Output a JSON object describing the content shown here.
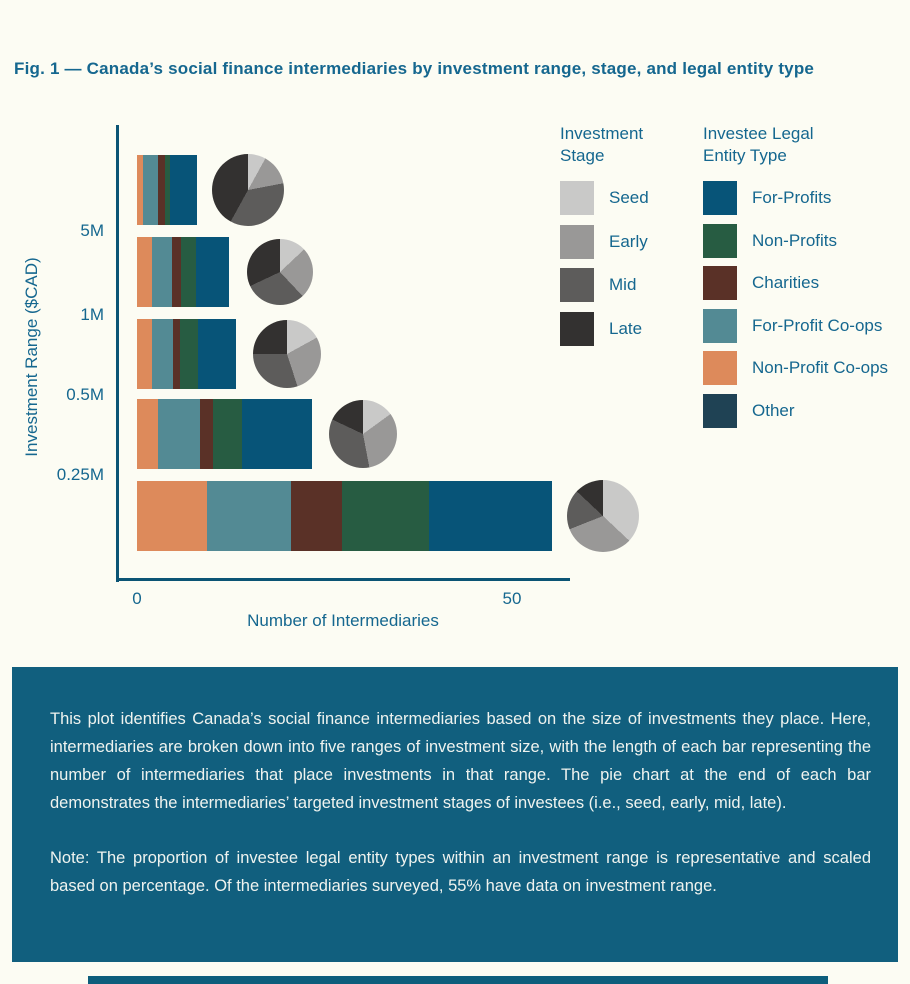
{
  "page": {
    "title": "Fig. 1 — Canada’s social finance intermediaries by investment range, stage, and legal entity type"
  },
  "chart_data": {
    "type": "bar",
    "orientation": "horizontal",
    "stacked": true,
    "grid": false,
    "xlabel": "Number of Intermediaries",
    "ylabel": "Investment Range ($CAD)",
    "x_range": [
      0,
      58
    ],
    "x_tick_labels": [
      "0",
      "50"
    ],
    "y_boundary_tick_labels": [
      "5M",
      "1M",
      "0.5M",
      "0.25M"
    ],
    "segment_order": [
      "Non-Profit Co-ops",
      "For-Profit Co-ops",
      "Charities",
      "Non-Profits",
      "For-Profits"
    ],
    "stage_order": [
      "Seed",
      "Early",
      "Mid",
      "Late"
    ],
    "entity_colors": {
      "For-Profits": "#075478",
      "Non-Profits": "#275C42",
      "Charities": "#5A3127",
      "For-Profit Co-ops": "#538A94",
      "Non-Profit Co-ops": "#DD8A5B",
      "Other": "#1F4254"
    },
    "stage_colors": {
      "Seed": "#C9C9C8",
      "Early": "#999897",
      "Mid": "#5D5C5B",
      "Late": "#333130"
    },
    "rows": [
      {
        "range": "above 5M",
        "total_intermediaries": 8.0,
        "segments": {
          "Non-Profit Co-ops": 0.8,
          "For-Profit Co-ops": 2.0,
          "Charities": 0.9,
          "Non-Profits": 0.7,
          "For-Profits": 3.6
        },
        "pie_stage_pct": {
          "Seed": 8,
          "Early": 14,
          "Mid": 36,
          "Late": 42
        }
      },
      {
        "range": "1M to 5M",
        "total_intermediaries": 12.2,
        "segments": {
          "Non-Profit Co-ops": 2.0,
          "For-Profit Co-ops": 2.7,
          "Charities": 1.1,
          "Non-Profits": 2.0,
          "For-Profits": 4.4
        },
        "pie_stage_pct": {
          "Seed": 13,
          "Early": 25,
          "Mid": 30,
          "Late": 32
        }
      },
      {
        "range": "0.5M to 1M",
        "total_intermediaries": 13.2,
        "segments": {
          "Non-Profit Co-ops": 2.0,
          "For-Profit Co-ops": 2.8,
          "Charities": 0.9,
          "Non-Profits": 2.4,
          "For-Profits": 5.1
        },
        "pie_stage_pct": {
          "Seed": 17,
          "Early": 28,
          "Mid": 30,
          "Late": 25
        }
      },
      {
        "range": "0.25M to 0.5M",
        "total_intermediaries": 23.3,
        "segments": {
          "Non-Profit Co-ops": 2.8,
          "For-Profit Co-ops": 5.6,
          "Charities": 1.7,
          "Non-Profits": 3.9,
          "For-Profits": 9.3
        },
        "pie_stage_pct": {
          "Seed": 15,
          "Early": 32,
          "Mid": 35,
          "Late": 18
        }
      },
      {
        "range": "0 to 0.25M",
        "total_intermediaries": 55.3,
        "segments": {
          "Non-Profit Co-ops": 9.3,
          "For-Profit Co-ops": 11.2,
          "Charities": 6.8,
          "Non-Profits": 11.6,
          "For-Profits": 16.4
        },
        "pie_stage_pct": {
          "Seed": 37,
          "Early": 32,
          "Mid": 18,
          "Late": 13
        }
      }
    ],
    "legends": {
      "stage": {
        "title_line1": "Investment",
        "title_line2": "Stage",
        "items": [
          "Seed",
          "Early",
          "Mid",
          "Late"
        ]
      },
      "entity": {
        "title_line1": "Investee Legal",
        "title_line2": "Entity Type",
        "items": [
          "For-Profits",
          "Non-Profits",
          "Charities",
          "For-Profit Co-ops",
          "Non-Profit Co-ops",
          "Other"
        ]
      }
    }
  },
  "caption": {
    "paragraph1": "This plot identifies Canada’s social finance intermediaries based on the size of investments they place. Here, intermediaries are broken down into five ranges of investment size, with the length of each bar representing the number of intermediaries that place investments in that range. The pie chart at the end of each bar demonstrates the intermediaries’ targeted investment stages of investees (i.e., seed, early, mid, late).",
    "paragraph2": "Note: The proportion of investee legal entity types within an investment range is represen­tative and scaled based on percentage. Of the intermediaries surveyed, 55% have data on investment range."
  }
}
